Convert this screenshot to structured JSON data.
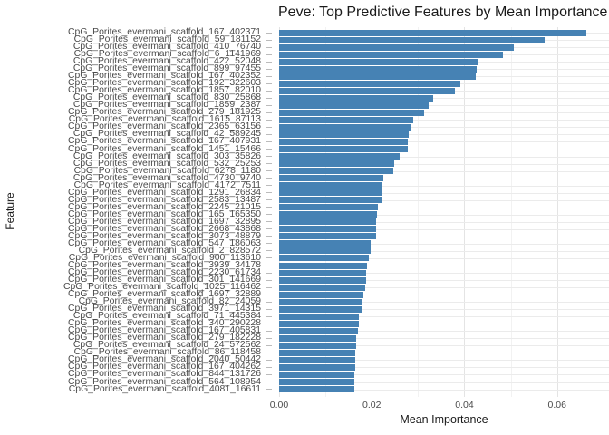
{
  "chart_style": {
    "bar_color": "#4682b4",
    "grid_major_color": "#e4e4e4",
    "grid_minor_color": "#f2f2f2",
    "axis_text_color": "#4b4b4b",
    "title_color": "#1a1a1a",
    "background": "#ffffff"
  },
  "chart_data": {
    "type": "bar",
    "orientation": "horizontal",
    "title": "Peve: Top Predictive Features by Mean Importance",
    "xlabel": "Mean Importance",
    "ylabel": "Feature",
    "legend": false,
    "grid": true,
    "xlim": [
      0,
      0.0712
    ],
    "x_ticks": [
      0,
      0.02,
      0.04,
      0.06
    ],
    "x_tick_labels": [
      "0.00",
      "0.02",
      "0.04",
      "0.06"
    ],
    "x_minor_gridlines": [
      0.01,
      0.03,
      0.05,
      0.07
    ],
    "categories": [
      "CpG_Porites_evermani_scaffold_167_402371",
      "CpG_Porites_evermani_scaffold_59_181152",
      "CpG_Porites_evermani_scaffold_410_76740",
      "CpG_Porites_evermani_scaffold_6_1141969",
      "CpG_Porites_evermani_scaffold_422_52048",
      "CpG_Porites_evermani_scaffold_899_97455",
      "CpG_Porites_evermani_scaffold_167_402352",
      "CpG_Porites_evermani_scaffold_192_322603",
      "CpG_Porites_evermani_scaffold_1857_82010",
      "CpG_Porites_evermani_scaffold_830_25868",
      "CpG_Porites_evermani_scaffold_1859_2387",
      "CpG_Porites_evermani_scaffold_279_181925",
      "CpG_Porites_evermani_scaffold_1615_87113",
      "CpG_Porites_evermani_scaffold_2365_63156",
      "CpG_Porites_evermani_scaffold_42_589245",
      "CpG_Porites_evermani_scaffold_167_407931",
      "CpG_Porites_evermani_scaffold_1451_15466",
      "CpG_Porites_evermani_scaffold_303_35826",
      "CpG_Porites_evermani_scaffold_532_25253",
      "CpG_Porites_evermani_scaffold_6278_1180",
      "CpG_Porites_evermani_scaffold_4730_9740",
      "CpG_Porites_evermani_scaffold_4172_7511",
      "CpG_Porites_evermani_scaffold_1291_26834",
      "CpG_Porites_evermani_scaffold_2583_13487",
      "CpG_Porites_evermani_scaffold_2245_21015",
      "CpG_Porites_evermani_scaffold_165_165350",
      "CpG_Porites_evermani_scaffold_1697_32895",
      "CpG_Porites_evermani_scaffold_2668_43868",
      "CpG_Porites_evermani_scaffold_3073_48879",
      "CpG_Porites_evermani_scaffold_547_186063",
      "CpG_Porites_evermani_scaffold_2_828572",
      "CpG_Porites_evermani_scaffold_900_113610",
      "CpG_Porites_evermani_scaffold_3939_34178",
      "CpG_Porites_evermani_scaffold_2230_61734",
      "CpG_Porites_evermani_scaffold_301_141669",
      "CpG_Porites_evermani_scaffold_1025_116462",
      "CpG_Porites_evermani_scaffold_1697_32889",
      "CpG_Porites_evermani_scaffold_82_24059",
      "CpG_Porites_evermani_scaffold_3971_14315",
      "CpG_Porites_evermani_scaffold_71_445384",
      "CpG_Porites_evermani_scaffold_340_290228",
      "CpG_Porites_evermani_scaffold_167_405831",
      "CpG_Porites_evermani_scaffold_279_182228",
      "CpG_Porites_evermani_scaffold_24_572562",
      "CpG_Porites_evermani_scaffold_86_118458",
      "CpG_Porites_evermani_scaffold_2040_50442",
      "CpG_Porites_evermani_scaffold_167_404262",
      "CpG_Porites_evermani_scaffold_844_131726",
      "CpG_Porites_evermani_scaffold_564_108954",
      "CpG_Porites_evermani_scaffold_4081_16611"
    ],
    "values": [
      0.0663,
      0.0574,
      0.0506,
      0.0484,
      0.0429,
      0.0427,
      0.0425,
      0.0392,
      0.038,
      0.0332,
      0.0323,
      0.0312,
      0.0289,
      0.0285,
      0.028,
      0.0278,
      0.0277,
      0.0261,
      0.0248,
      0.0247,
      0.0224,
      0.0222,
      0.0221,
      0.022,
      0.0213,
      0.0211,
      0.021,
      0.021,
      0.0209,
      0.0198,
      0.0197,
      0.0194,
      0.0189,
      0.0188,
      0.0187,
      0.0185,
      0.0182,
      0.0179,
      0.0177,
      0.0173,
      0.0172,
      0.017,
      0.0167,
      0.0166,
      0.0165,
      0.0164,
      0.0164,
      0.0163,
      0.0163,
      0.0162
    ]
  }
}
